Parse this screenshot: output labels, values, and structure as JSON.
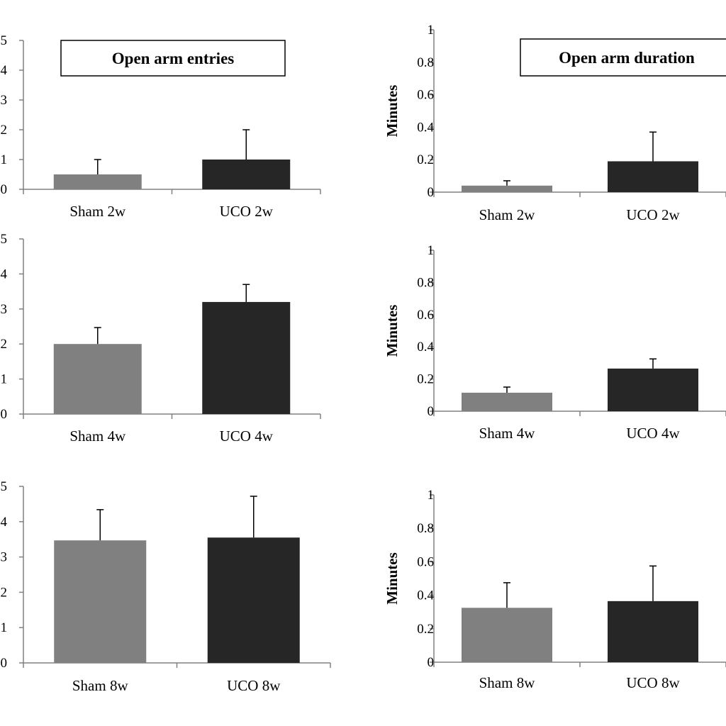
{
  "chart_data": [
    {
      "type": "bar",
      "title": "Open arm entries",
      "ylabel": "",
      "categories": [
        "Sham 2w",
        "UCO 2w"
      ],
      "values": [
        0.5,
        1.0
      ],
      "errors": [
        0.5,
        1.0
      ],
      "ylim": [
        0,
        5
      ],
      "yticks": [
        "0",
        "1",
        "2",
        "3",
        "4",
        "5"
      ],
      "colors": [
        "#808080",
        "#262626"
      ]
    },
    {
      "type": "bar",
      "title": "Open arm duration",
      "ylabel": "Minutes",
      "categories": [
        "Sham 2w",
        "UCO 2w"
      ],
      "values": [
        0.04,
        0.19
      ],
      "errors": [
        0.03,
        0.18
      ],
      "ylim": [
        0,
        1
      ],
      "yticks": [
        "0",
        "0.2",
        "0.4",
        "0.6",
        "0.8",
        "1"
      ],
      "colors": [
        "#808080",
        "#262626"
      ]
    },
    {
      "type": "bar",
      "title": "",
      "ylabel": "",
      "categories": [
        "Sham 4w",
        "UCO 4w"
      ],
      "values": [
        2.0,
        3.2
      ],
      "errors": [
        0.47,
        0.5
      ],
      "ylim": [
        0,
        5
      ],
      "yticks": [
        "0",
        "1",
        "2",
        "3",
        "4",
        "5"
      ],
      "colors": [
        "#808080",
        "#262626"
      ]
    },
    {
      "type": "bar",
      "title": "",
      "ylabel": "Minutes",
      "categories": [
        "Sham 4w",
        "UCO 4w"
      ],
      "values": [
        0.115,
        0.265
      ],
      "errors": [
        0.035,
        0.06
      ],
      "ylim": [
        0,
        1
      ],
      "yticks": [
        "0",
        "0.2",
        "0.4",
        "0.6",
        "0.8",
        "1"
      ],
      "colors": [
        "#808080",
        "#262626"
      ]
    },
    {
      "type": "bar",
      "title": "",
      "ylabel": "",
      "categories": [
        "Sham 8w",
        "UCO 8w"
      ],
      "values": [
        3.47,
        3.55
      ],
      "errors": [
        0.87,
        1.17
      ],
      "ylim": [
        0,
        5
      ],
      "yticks": [
        "0",
        "1",
        "2",
        "3",
        "4",
        "5"
      ],
      "colors": [
        "#808080",
        "#262626"
      ]
    },
    {
      "type": "bar",
      "title": "",
      "ylabel": "Minutes",
      "categories": [
        "Sham 8w",
        "UCO 8w"
      ],
      "values": [
        0.325,
        0.365
      ],
      "errors": [
        0.15,
        0.21
      ],
      "ylim": [
        0,
        1
      ],
      "yticks": [
        "0",
        "0.2",
        "0.4",
        "0.6",
        "0.8",
        "1"
      ],
      "colors": [
        "#808080",
        "#262626"
      ]
    }
  ]
}
